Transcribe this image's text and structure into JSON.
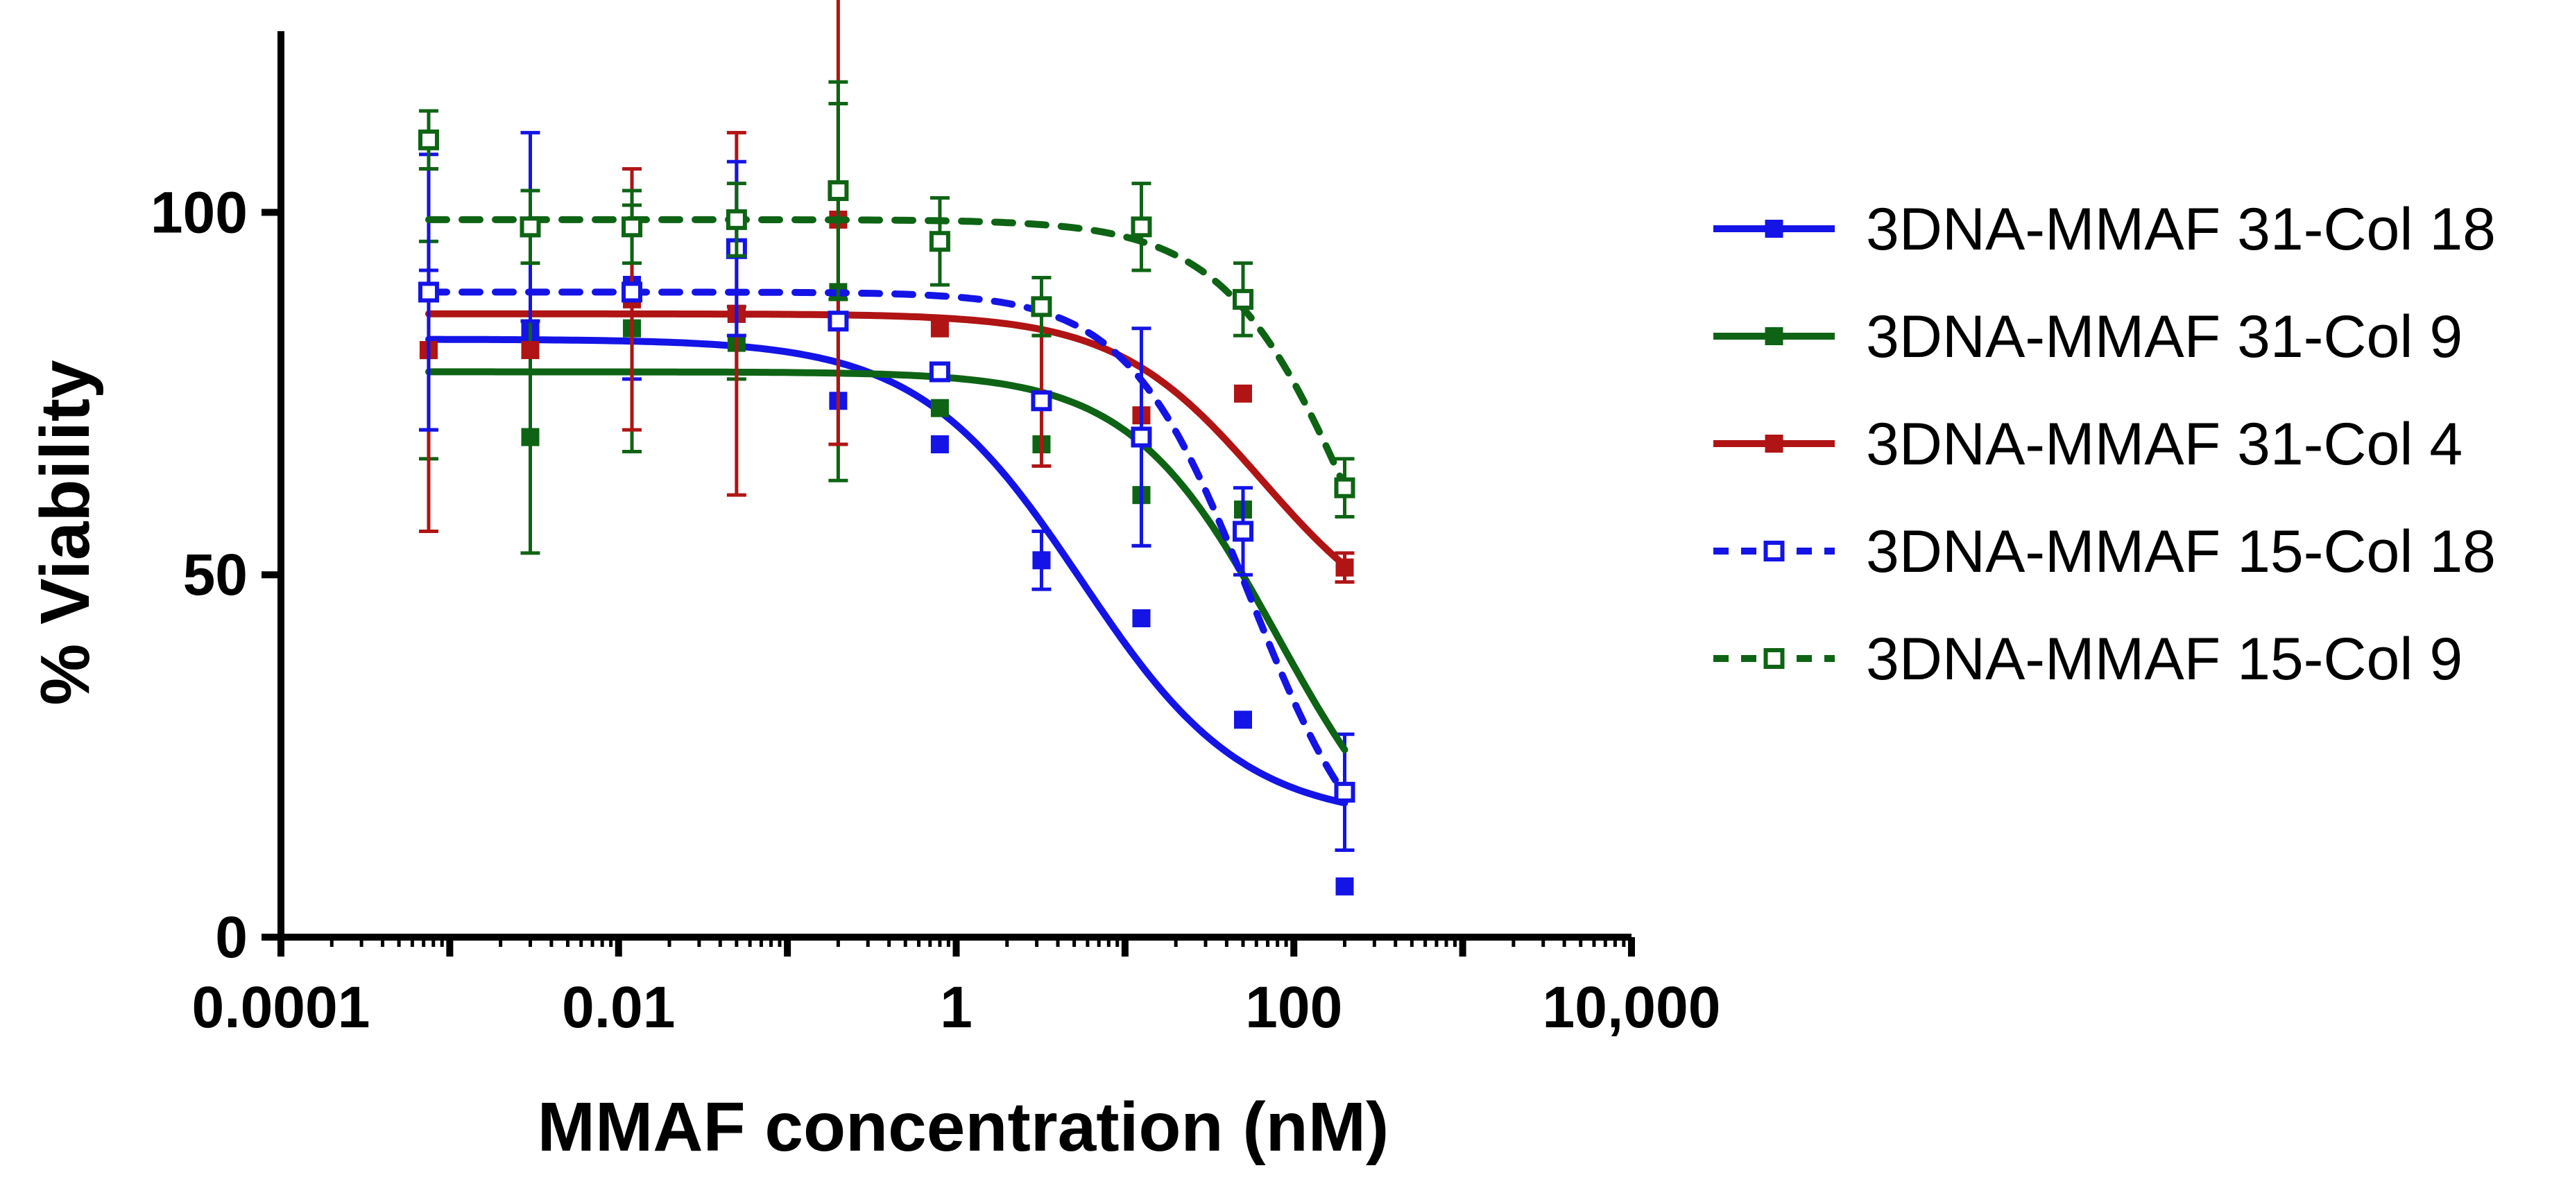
{
  "chart_data": {
    "type": "scatter",
    "xscale": "log",
    "xlabel": "MMAF concentration (nM)",
    "ylabel": "% Viability",
    "xlim": [
      0.0001,
      10000
    ],
    "ylim": [
      0,
      125
    ],
    "xticks": [
      {
        "value": 0.0001,
        "label": "0.0001"
      },
      {
        "value": 0.01,
        "label": "0.01"
      },
      {
        "value": 1,
        "label": "1"
      },
      {
        "value": 100,
        "label": "100"
      },
      {
        "value": 10000,
        "label": "10,000"
      }
    ],
    "yticks": [
      {
        "value": 0,
        "label": "0"
      },
      {
        "value": 50,
        "label": "50"
      },
      {
        "value": 100,
        "label": "100"
      }
    ],
    "legend_position": "right",
    "series": [
      {
        "name": "3DNA-MMAF 31-Col 18",
        "color": "#1414e6",
        "marker": "filled-square",
        "line": "solid",
        "fit": {
          "top": 82.5,
          "bottom": 16,
          "ec50": 5.5,
          "hill": 0.9
        },
        "points": [
          {
            "x": 0.00075,
            "y": 81,
            "err": 11
          },
          {
            "x": 0.003,
            "y": 84,
            "err": 0
          },
          {
            "x": 0.012,
            "y": 90,
            "err": 13
          },
          {
            "x": 0.05,
            "y": 86,
            "err": 0
          },
          {
            "x": 0.2,
            "y": 74,
            "err": 0
          },
          {
            "x": 0.8,
            "y": 68,
            "err": 0
          },
          {
            "x": 3.2,
            "y": 52,
            "err": 4
          },
          {
            "x": 12.5,
            "y": 44,
            "err": 0
          },
          {
            "x": 50,
            "y": 30,
            "err": 0
          },
          {
            "x": 200,
            "y": 7,
            "err": 0
          },
          {
            "x": 200,
            "y": 20,
            "err": 8
          }
        ]
      },
      {
        "name": "3DNA-MMAF 31-Col 9",
        "color": "#0e6414",
        "marker": "filled-square",
        "line": "solid",
        "fit": {
          "top": 78,
          "bottom": 5,
          "ec50": 80,
          "hill": 1.0
        },
        "points": [
          {
            "x": 0.00075,
            "y": 81,
            "err": 15
          },
          {
            "x": 0.003,
            "y": 69,
            "err": 16
          },
          {
            "x": 0.012,
            "y": 84,
            "err": 17
          },
          {
            "x": 0.05,
            "y": 82,
            "err": 5
          },
          {
            "x": 0.2,
            "y": 89,
            "err": 26
          },
          {
            "x": 0.8,
            "y": 73,
            "err": 0
          },
          {
            "x": 3.2,
            "y": 68,
            "err": 0
          },
          {
            "x": 12.5,
            "y": 61,
            "err": 7
          },
          {
            "x": 50,
            "y": 59,
            "err": 0
          },
          {
            "x": 200,
            "y": 20,
            "err": 0
          }
        ]
      },
      {
        "name": "3DNA-MMAF 31-Col 4",
        "color": "#b01414",
        "marker": "filled-square",
        "line": "solid",
        "fit": {
          "top": 86,
          "bottom": 40,
          "ec50": 65,
          "hill": 1.0
        },
        "points": [
          {
            "x": 0.00075,
            "y": 81,
            "err": 25
          },
          {
            "x": 0.003,
            "y": 81,
            "err": 0
          },
          {
            "x": 0.012,
            "y": 88,
            "err": 18
          },
          {
            "x": 0.05,
            "y": 86,
            "err": 25
          },
          {
            "x": 0.2,
            "y": 99,
            "err": 31
          },
          {
            "x": 0.8,
            "y": 84,
            "err": 0
          },
          {
            "x": 3.2,
            "y": 74,
            "err": 9
          },
          {
            "x": 12.5,
            "y": 72,
            "err": 0
          },
          {
            "x": 50,
            "y": 75,
            "err": 0
          },
          {
            "x": 200,
            "y": 51,
            "err": 2
          }
        ]
      },
      {
        "name": "3DNA-MMAF 15-Col 18",
        "color": "#1414e6",
        "marker": "open-square",
        "line": "dashed",
        "fit": {
          "top": 89,
          "bottom": 5,
          "ec50": 55,
          "hill": 1.2
        },
        "points": [
          {
            "x": 0.00075,
            "y": 89,
            "err": 19
          },
          {
            "x": 0.003,
            "y": 98,
            "err": 13
          },
          {
            "x": 0.012,
            "y": 89,
            "err": 0
          },
          {
            "x": 0.05,
            "y": 95,
            "err": 12
          },
          {
            "x": 0.2,
            "y": 85,
            "err": 0
          },
          {
            "x": 0.8,
            "y": 78,
            "err": 0
          },
          {
            "x": 3.2,
            "y": 74,
            "err": 0
          },
          {
            "x": 12.5,
            "y": 69,
            "err": 15
          },
          {
            "x": 50,
            "y": 56,
            "err": 6
          },
          {
            "x": 200,
            "y": 20,
            "err": 0
          }
        ]
      },
      {
        "name": "3DNA-MMAF 15-Col 9",
        "color": "#0e6414",
        "marker": "open-square",
        "line": "dashed",
        "fit": {
          "top": 99,
          "bottom": 15,
          "ec50": 250,
          "hill": 1.1
        },
        "points": [
          {
            "x": 0.00075,
            "y": 110,
            "err": 4
          },
          {
            "x": 0.003,
            "y": 98,
            "err": 5
          },
          {
            "x": 0.012,
            "y": 98,
            "err": 5
          },
          {
            "x": 0.05,
            "y": 99,
            "err": 5
          },
          {
            "x": 0.2,
            "y": 103,
            "err": 15
          },
          {
            "x": 0.8,
            "y": 96,
            "err": 6
          },
          {
            "x": 3.2,
            "y": 87,
            "err": 4
          },
          {
            "x": 12.5,
            "y": 98,
            "err": 6
          },
          {
            "x": 50,
            "y": 88,
            "err": 5
          },
          {
            "x": 200,
            "y": 62,
            "err": 4
          }
        ]
      }
    ]
  }
}
